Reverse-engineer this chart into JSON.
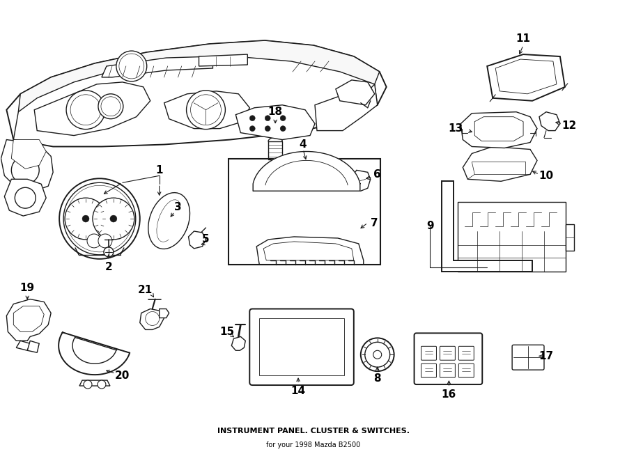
{
  "title": "INSTRUMENT PANEL. CLUSTER & SWITCHES.",
  "subtitle": "for your 1998 Mazda B2500",
  "bg_color": "#ffffff",
  "line_color": "#1a1a1a",
  "text_color": "#000000",
  "fig_width": 9.0,
  "fig_height": 6.62,
  "dpi": 100,
  "label_fontsize": 11,
  "title_fontsize": 8,
  "subtitle_fontsize": 7,
  "lw_main": 1.0,
  "lw_thin": 0.6,
  "lw_thick": 1.4
}
